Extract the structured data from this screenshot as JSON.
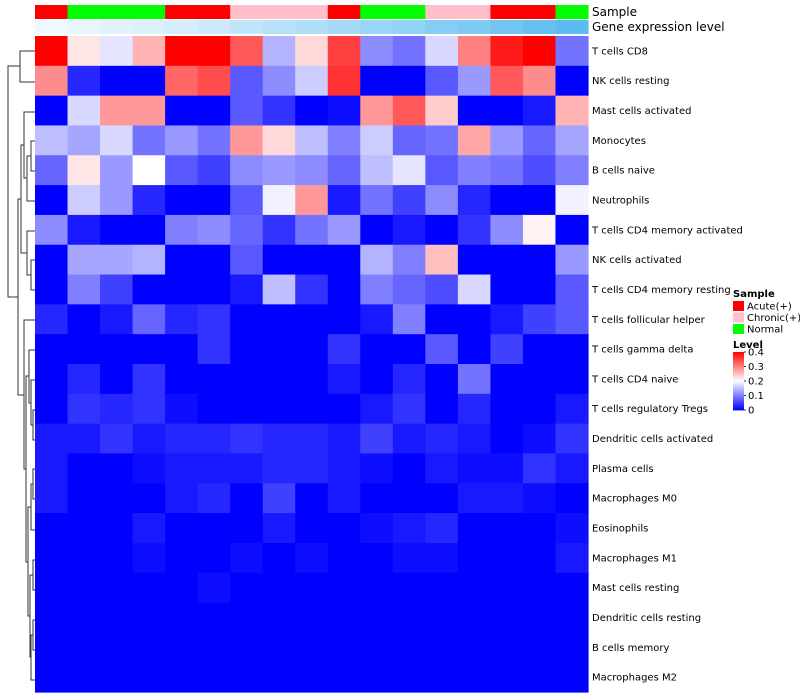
{
  "chart_data": {
    "type": "heatmap",
    "row_labels": [
      "T cells CD8",
      "NK cells resting",
      "Mast cells activated",
      "Monocytes",
      "B cells naive",
      "Neutrophils",
      "T cells CD4 memory activated",
      "NK cells activated",
      "T cells CD4 memory resting",
      "T cells follicular helper",
      "T cells gamma delta",
      "T cells CD4 naive",
      "T cells regulatory  Tregs",
      "Dendritic cells activated",
      "Plasma cells",
      "Macrophages M0",
      "Eosinophils",
      "Macrophages M1",
      "Mast cells resting",
      "Dendritic cells resting",
      "B cells memory",
      "Macrophages M2"
    ],
    "annotation_labels": {
      "sample": "Sample",
      "expression": "Gene expression level"
    },
    "sample_groups": [
      "Acute(+)",
      "Normal",
      "Normal",
      "Normal",
      "Acute(+)",
      "Acute(+)",
      "Chronic(+)",
      "Chronic(+)",
      "Chronic(+)",
      "Acute(+)",
      "Normal",
      "Normal",
      "Chronic(+)",
      "Chronic(+)",
      "Acute(+)",
      "Acute(+)",
      "Normal"
    ],
    "expression_annotation": [
      0.0,
      0.02,
      0.04,
      0.06,
      0.09,
      0.12,
      0.16,
      0.19,
      0.22,
      0.26,
      0.3,
      0.33,
      0.37,
      0.4,
      0.44,
      0.48,
      0.52
    ],
    "values": [
      [
        0.4,
        0.22,
        0.18,
        0.26,
        0.4,
        0.4,
        0.33,
        0.14,
        0.23,
        0.35,
        0.11,
        0.09,
        0.17,
        0.3,
        0.38,
        0.4,
        0.09
      ],
      [
        0.29,
        0.03,
        0.0,
        0.0,
        0.32,
        0.34,
        0.07,
        0.11,
        0.16,
        0.36,
        0.0,
        0.0,
        0.07,
        0.12,
        0.33,
        0.29,
        0.0
      ],
      [
        0.0,
        0.17,
        0.28,
        0.28,
        0.0,
        0.0,
        0.07,
        0.04,
        0.0,
        0.01,
        0.28,
        0.33,
        0.24,
        0.0,
        0.0,
        0.02,
        0.26
      ],
      [
        0.15,
        0.13,
        0.17,
        0.09,
        0.12,
        0.09,
        0.28,
        0.23,
        0.15,
        0.1,
        0.16,
        0.08,
        0.09,
        0.27,
        0.12,
        0.08,
        0.13
      ],
      [
        0.08,
        0.22,
        0.12,
        0.2,
        0.07,
        0.05,
        0.11,
        0.12,
        0.11,
        0.08,
        0.15,
        0.18,
        0.07,
        0.1,
        0.09,
        0.06,
        0.1
      ],
      [
        0.0,
        0.16,
        0.12,
        0.03,
        0.0,
        0.0,
        0.07,
        0.19,
        0.28,
        0.02,
        0.09,
        0.05,
        0.11,
        0.03,
        0.0,
        0.0,
        0.19
      ],
      [
        0.11,
        0.02,
        0.0,
        0.0,
        0.1,
        0.11,
        0.08,
        0.04,
        0.09,
        0.12,
        0.0,
        0.02,
        0.0,
        0.04,
        0.11,
        0.21,
        0.0
      ],
      [
        0.0,
        0.13,
        0.13,
        0.14,
        0.0,
        0.0,
        0.07,
        0.0,
        0.0,
        0.0,
        0.14,
        0.1,
        0.25,
        0.0,
        0.0,
        0.0,
        0.12
      ],
      [
        0.0,
        0.1,
        0.05,
        0.0,
        0.0,
        0.0,
        0.02,
        0.15,
        0.04,
        0.0,
        0.1,
        0.08,
        0.06,
        0.17,
        0.0,
        0.0,
        0.07
      ],
      [
        0.03,
        0.0,
        0.02,
        0.08,
        0.03,
        0.04,
        0.0,
        0.0,
        0.0,
        0.0,
        0.02,
        0.1,
        0.0,
        0.0,
        0.02,
        0.05,
        0.07
      ],
      [
        0.0,
        0.0,
        0.0,
        0.0,
        0.0,
        0.04,
        0.0,
        0.0,
        0.0,
        0.04,
        0.0,
        0.0,
        0.07,
        0.0,
        0.05,
        0.0,
        0.0
      ],
      [
        0.0,
        0.03,
        0.0,
        0.04,
        0.0,
        0.0,
        0.0,
        0.0,
        0.0,
        0.02,
        0.0,
        0.03,
        0.0,
        0.09,
        0.0,
        0.0,
        0.0
      ],
      [
        0.0,
        0.04,
        0.03,
        0.04,
        0.01,
        0.0,
        0.0,
        0.0,
        0.0,
        0.0,
        0.02,
        0.04,
        0.0,
        0.03,
        0.0,
        0.0,
        0.02
      ],
      [
        0.02,
        0.02,
        0.04,
        0.02,
        0.03,
        0.03,
        0.04,
        0.03,
        0.03,
        0.02,
        0.05,
        0.02,
        0.03,
        0.02,
        0.0,
        0.01,
        0.04
      ],
      [
        0.02,
        0.0,
        0.0,
        0.01,
        0.02,
        0.02,
        0.02,
        0.03,
        0.03,
        0.02,
        0.01,
        0.0,
        0.02,
        0.01,
        0.01,
        0.04,
        0.02
      ],
      [
        0.02,
        0.0,
        0.0,
        0.0,
        0.02,
        0.03,
        0.0,
        0.05,
        0.0,
        0.02,
        0.0,
        0.0,
        0.0,
        0.02,
        0.02,
        0.01,
        0.0
      ],
      [
        0.0,
        0.0,
        0.0,
        0.02,
        0.0,
        0.0,
        0.0,
        0.02,
        0.0,
        0.0,
        0.01,
        0.02,
        0.03,
        0.0,
        0.0,
        0.0,
        0.01
      ],
      [
        0.0,
        0.0,
        0.0,
        0.01,
        0.0,
        0.0,
        0.01,
        0.0,
        0.01,
        0.0,
        0.0,
        0.01,
        0.01,
        0.0,
        0.0,
        0.0,
        0.02
      ],
      [
        0.0,
        0.0,
        0.0,
        0.0,
        0.0,
        0.01,
        0.0,
        0.0,
        0.0,
        0.0,
        0.0,
        0.0,
        0.0,
        0.0,
        0.0,
        0.0,
        0.0
      ],
      [
        0.0,
        0.0,
        0.0,
        0.0,
        0.0,
        0.0,
        0.0,
        0.0,
        0.0,
        0.0,
        0.0,
        0.0,
        0.0,
        0.0,
        0.0,
        0.0,
        0.0
      ],
      [
        0.0,
        0.0,
        0.0,
        0.0,
        0.0,
        0.0,
        0.0,
        0.0,
        0.0,
        0.0,
        0.0,
        0.0,
        0.0,
        0.0,
        0.0,
        0.0,
        0.0
      ],
      [
        0.0,
        0.0,
        0.0,
        0.0,
        0.0,
        0.0,
        0.0,
        0.0,
        0.0,
        0.0,
        0.0,
        0.0,
        0.0,
        0.0,
        0.0,
        0.0,
        0.0
      ]
    ],
    "color_scale": {
      "low": "#0000ff",
      "mid": "#ffffff",
      "high": "#ff0000",
      "min": 0,
      "max": 0.4
    },
    "legend_sample": {
      "title": "Sample",
      "items": [
        {
          "label": "Acute(+)",
          "color": "#ff0000"
        },
        {
          "label": "Chronic(+)",
          "color": "#ffc0cb"
        },
        {
          "label": "Normal",
          "color": "#00ff00"
        }
      ]
    },
    "legend_level": {
      "title": "Level",
      "ticks": [
        "0.4",
        "0.3",
        "0.2",
        "0.1",
        "0"
      ],
      "tick_values": [
        0.4,
        0.3,
        0.2,
        0.1,
        0
      ]
    },
    "annotation_low": "#eef8ff",
    "annotation_high": "#5bbcef",
    "legend_placement": "right",
    "dendrogram": "rows-left"
  }
}
